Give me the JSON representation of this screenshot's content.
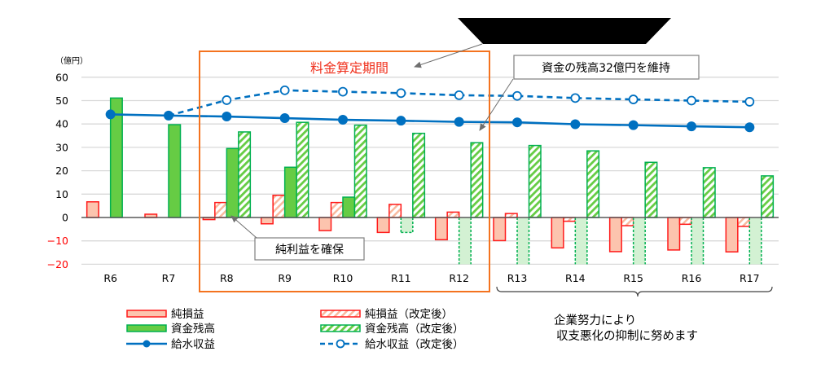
{
  "chart_data": {
    "type": "bar",
    "title": "",
    "ylabel": "（億円）",
    "xlabel": "",
    "ylim": [
      -20,
      60
    ],
    "yticks": [
      60,
      50,
      40,
      30,
      20,
      10,
      0,
      -10,
      -20
    ],
    "grid": true,
    "categories": [
      "R6",
      "R7",
      "R8",
      "R9",
      "R10",
      "R11",
      "R12",
      "R13",
      "R14",
      "R15",
      "R16",
      "R17"
    ],
    "series": [
      {
        "name": "純損益",
        "kind": "bar",
        "style": "solid-red",
        "values": [
          6.7,
          1.4,
          -0.9,
          -2.7,
          -5.6,
          -6.4,
          -9.5,
          -9.9,
          -13.0,
          -14.6,
          -13.9,
          -14.7
        ]
      },
      {
        "name": "純損益（改定後）",
        "kind": "bar",
        "style": "hatched-red",
        "values": [
          null,
          null,
          6.4,
          9.5,
          6.4,
          5.6,
          2.3,
          1.7,
          -1.6,
          -3.5,
          -2.9,
          -3.8
        ]
      },
      {
        "name": "資金残高",
        "kind": "bar",
        "style": "solid-green",
        "values": [
          51.1,
          39.7,
          29.5,
          21.5,
          8.7,
          -6.4,
          -20,
          -20,
          -20,
          -20,
          -20,
          -20
        ]
      },
      {
        "name": "資金残高（改定後）",
        "kind": "bar",
        "style": "hatched-green",
        "values": [
          null,
          null,
          36.6,
          40.7,
          39.5,
          36.0,
          32.0,
          30.8,
          28.5,
          23.6,
          21.3,
          17.8
        ]
      },
      {
        "name": "給水収益",
        "kind": "line",
        "style": "solid-blue",
        "values": [
          44.1,
          43.6,
          43.2,
          42.5,
          41.8,
          41.4,
          40.9,
          40.7,
          39.9,
          39.5,
          39.0,
          38.6
        ]
      },
      {
        "name": "給水収益（改定後）",
        "kind": "line",
        "style": "dashed-blue",
        "values": [
          null,
          43.6,
          50.2,
          54.4,
          53.8,
          53.2,
          52.3,
          52.0,
          51.1,
          50.5,
          50.0,
          49.5
        ]
      }
    ],
    "annotations": {
      "period_label": "料金算定期間",
      "period_range": [
        "R8",
        "R12"
      ],
      "fund_callout": "資金の残高32億円を維持",
      "profit_callout": "純利益を確保",
      "note_lines": [
        "企業努力により",
        "収支悪化の抑制に努めます"
      ],
      "note_range": [
        "R13",
        "R17"
      ]
    },
    "legend": {
      "position": "bottom",
      "items": [
        {
          "label": "純損益",
          "style": "solid-red"
        },
        {
          "label": "純損益（改定後）",
          "style": "hatched-red"
        },
        {
          "label": "資金残高",
          "style": "solid-green"
        },
        {
          "label": "資金残高（改定後）",
          "style": "hatched-green"
        },
        {
          "label": "給水収益",
          "style": "solid-blue"
        },
        {
          "label": "給水収益（改定後）",
          "style": "dashed-blue"
        }
      ]
    }
  },
  "colors": {
    "red_border": "#ff1a1a",
    "red_fill": "#fcc4ae",
    "green_border": "#00b050",
    "green_fill": "#66cc44",
    "green_neg_fill": "#d3f1d3",
    "blue_line": "#0070c0",
    "grid": "#d9d9d9",
    "axis": "#595959",
    "period_box": "#f4731f"
  }
}
